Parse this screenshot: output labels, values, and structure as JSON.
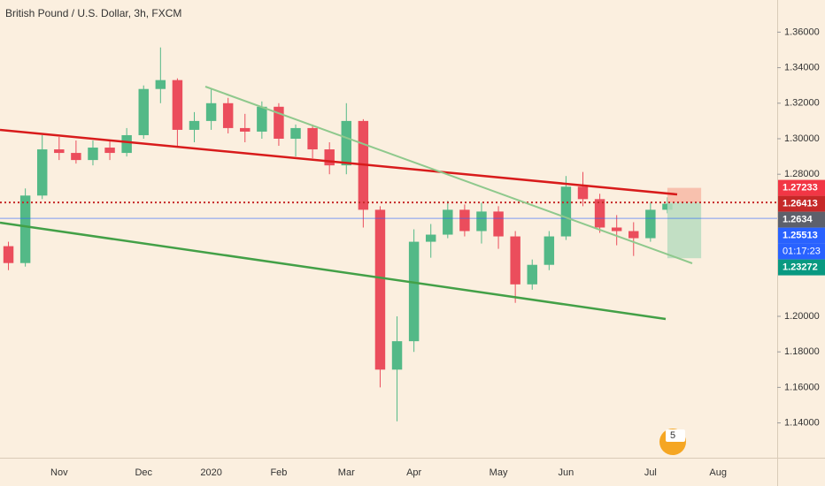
{
  "chart_data": {
    "type": "candlestick",
    "title": "British Pound / U.S. Dollar, 3h, FXCM",
    "categories": [
      null,
      null,
      null,
      "Nov",
      null,
      null,
      null,
      null,
      "Dec",
      null,
      null,
      null,
      "2020",
      null,
      null,
      null,
      "Feb",
      null,
      null,
      null,
      "Mar",
      null,
      null,
      null,
      "Apr",
      null,
      null,
      null,
      null,
      "May",
      null,
      null,
      null,
      "Jun",
      null,
      null,
      null,
      null,
      "Jul",
      null,
      null,
      null,
      "Aug",
      null,
      null,
      null
    ],
    "open": [
      1.2395,
      1.23,
      1.268,
      1.294,
      1.292,
      1.288,
      1.295,
      1.292,
      1.302,
      1.328,
      1.333,
      1.305,
      1.31,
      1.32,
      1.306,
      1.304,
      1.318,
      1.3,
      1.306,
      1.294,
      1.285,
      1.31,
      1.26,
      1.17,
      1.186,
      1.242,
      1.246,
      1.26,
      1.248,
      1.259,
      1.245,
      1.218,
      1.229,
      1.245,
      1.273,
      1.266,
      1.25,
      1.248,
      1.244,
      1.26,
      null,
      null,
      null,
      null,
      null,
      null
    ],
    "high": [
      1.242,
      1.272,
      1.302,
      1.301,
      1.299,
      1.299,
      1.299,
      1.306,
      1.33,
      1.3514,
      1.334,
      1.315,
      1.328,
      1.323,
      1.314,
      1.321,
      1.32,
      1.308,
      1.308,
      1.298,
      1.32,
      1.311,
      1.262,
      1.2,
      1.249,
      1.252,
      1.265,
      1.263,
      1.264,
      1.262,
      1.248,
      1.232,
      1.248,
      1.279,
      1.2813,
      1.269,
      1.257,
      1.253,
      1.264,
      1.267,
      null,
      null,
      null,
      null,
      null,
      null
    ],
    "low": [
      1.226,
      1.228,
      1.266,
      1.288,
      1.286,
      1.285,
      1.288,
      1.29,
      1.3,
      1.32,
      1.295,
      1.298,
      1.305,
      1.303,
      1.298,
      1.3,
      1.296,
      1.29,
      1.289,
      1.28,
      1.28,
      1.25,
      1.16,
      1.1409,
      1.18,
      1.233,
      1.244,
      1.245,
      1.241,
      1.238,
      1.2076,
      1.215,
      1.226,
      1.243,
      1.262,
      1.247,
      1.24,
      1.234,
      1.242,
      1.258,
      null,
      null,
      null,
      null,
      null,
      null
    ],
    "close": [
      1.23,
      1.268,
      1.294,
      1.292,
      1.288,
      1.295,
      1.292,
      1.302,
      1.328,
      1.333,
      1.305,
      1.31,
      1.32,
      1.306,
      1.304,
      1.318,
      1.3,
      1.306,
      1.294,
      1.285,
      1.31,
      1.26,
      1.17,
      1.186,
      1.242,
      1.246,
      1.26,
      1.248,
      1.259,
      1.245,
      1.218,
      1.229,
      1.245,
      1.273,
      1.266,
      1.25,
      1.248,
      1.244,
      1.26,
      1.2634,
      null,
      null,
      null,
      null,
      null,
      null
    ],
    "up_color": "#53b987",
    "down_color": "#eb4d5c",
    "ylim": [
      1.1204,
      1.3781
    ],
    "yticks": [
      {
        "value": 1.36,
        "label": "1.36000"
      },
      {
        "value": 1.34,
        "label": "1.34000"
      },
      {
        "value": 1.32,
        "label": "1.32000"
      },
      {
        "value": 1.3,
        "label": "1.30000"
      },
      {
        "value": 1.28,
        "label": "1.28000"
      },
      {
        "value": 1.2,
        "label": "1.20000"
      },
      {
        "value": 1.18,
        "label": "1.18000"
      },
      {
        "value": 1.16,
        "label": "1.16000"
      },
      {
        "value": 1.14,
        "label": "1.14000"
      }
    ],
    "position": {
      "stop": 1.27233,
      "entry": 1.26413,
      "target": 1.23272,
      "from": 39,
      "to": 41
    },
    "price_labels": [
      {
        "value": 1.27233,
        "color": "#f23645",
        "line": null
      },
      {
        "value": 1.26413,
        "color": "#c62828",
        "line": "dotted"
      },
      {
        "value": 1.2634,
        "color": "#5d606b",
        "line": null
      },
      {
        "value": 1.25513,
        "color": "#2962ff",
        "line": "solid",
        "countdown": "01:17:23"
      },
      {
        "value": 1.23272,
        "color": "#089981",
        "line": null
      }
    ],
    "badge": "5"
  }
}
